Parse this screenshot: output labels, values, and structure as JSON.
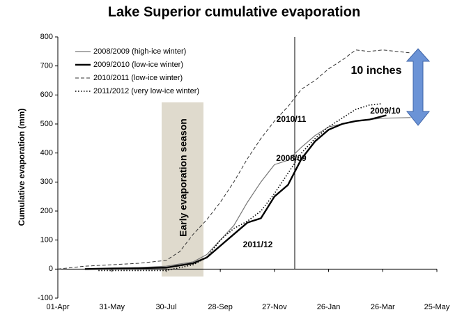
{
  "chart_data": {
    "type": "line",
    "title": "Lake Superior cumulative evaporation",
    "y_label": "Cumulative evaporation (mm)",
    "xlim": [
      0,
      420
    ],
    "xticks": [
      {
        "value": 0,
        "label": "01-Apr"
      },
      {
        "value": 60,
        "label": "31-May"
      },
      {
        "value": 120,
        "label": "30-Jul"
      },
      {
        "value": 180,
        "label": "28-Sep"
      },
      {
        "value": 240,
        "label": "27-Nov"
      },
      {
        "value": 300,
        "label": "26-Jan"
      },
      {
        "value": 360,
        "label": "26-Mar"
      },
      {
        "value": 420,
        "label": "25-May"
      }
    ],
    "ylim": [
      -100,
      800
    ],
    "yticks": [
      -100,
      0,
      100,
      200,
      300,
      400,
      500,
      600,
      700,
      800
    ],
    "grid": false,
    "legend": "top-left",
    "series": [
      {
        "name": "2008/2009 (high-ice winter)",
        "color": "#777777",
        "width": 1.2,
        "dash": "none",
        "x": [
          30,
          60,
          90,
          120,
          150,
          165,
          180,
          195,
          210,
          225,
          240,
          255,
          270,
          285,
          300,
          330,
          360,
          391
        ],
        "values": [
          0,
          3,
          5,
          10,
          25,
          50,
          100,
          150,
          230,
          300,
          360,
          375,
          420,
          460,
          490,
          510,
          520,
          522
        ]
      },
      {
        "name": "2009/2010 (low-ice winter)",
        "color": "#000000",
        "width": 2.4,
        "dash": "none",
        "x": [
          30,
          60,
          90,
          120,
          150,
          165,
          180,
          195,
          210,
          225,
          240,
          255,
          270,
          285,
          300,
          315,
          330,
          345,
          364
        ],
        "values": [
          0,
          2,
          3,
          5,
          20,
          40,
          80,
          120,
          160,
          175,
          250,
          290,
          380,
          440,
          480,
          500,
          510,
          515,
          530
        ]
      },
      {
        "name": "2010/2011 (low-ice winter)",
        "color": "#333333",
        "width": 1,
        "dash": "5 3",
        "x": [
          0,
          30,
          60,
          90,
          120,
          135,
          150,
          165,
          180,
          195,
          210,
          225,
          240,
          255,
          270,
          285,
          300,
          315,
          330,
          345,
          360,
          391
        ],
        "values": [
          0,
          10,
          15,
          20,
          30,
          60,
          120,
          170,
          230,
          300,
          380,
          450,
          510,
          560,
          620,
          650,
          690,
          720,
          755,
          750,
          755,
          745
        ]
      },
      {
        "name": "2011/2012 (very low-ice winter)",
        "color": "#000000",
        "width": 1.6,
        "dash": "1.5 2.5",
        "x": [
          45,
          90,
          120,
          150,
          165,
          180,
          195,
          210,
          225,
          240,
          255,
          270,
          285,
          300,
          315,
          330,
          345,
          359
        ],
        "values": [
          -5,
          -5,
          -5,
          15,
          40,
          100,
          140,
          165,
          200,
          260,
          330,
          400,
          450,
          490,
          520,
          550,
          565,
          570
        ]
      }
    ],
    "annotations": [
      "10 inches",
      "2010/11",
      "2008/09",
      "2009/10",
      "2011/12",
      "Early evaporation season"
    ]
  }
}
